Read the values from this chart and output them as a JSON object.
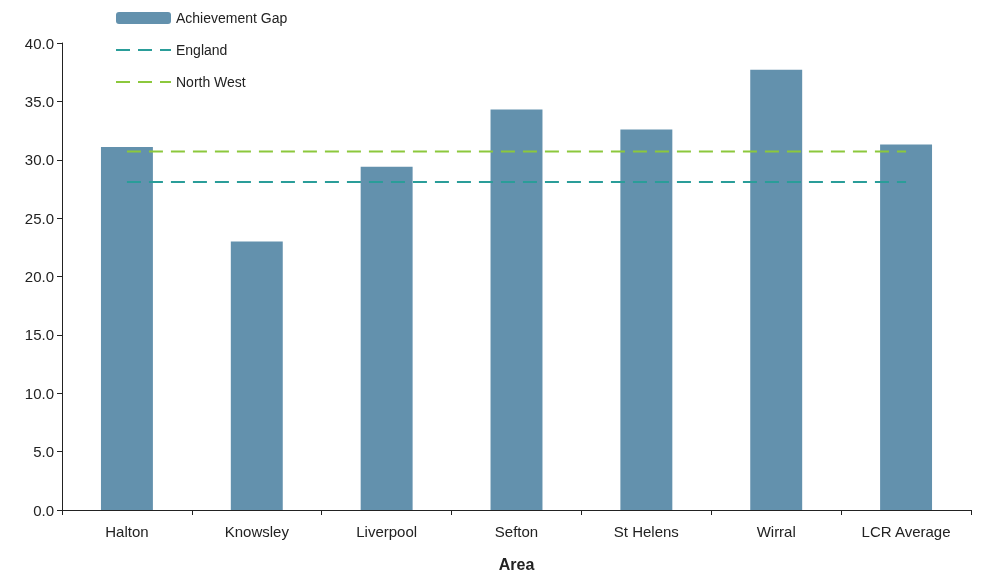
{
  "chart_data": {
    "type": "bar",
    "xlabel": "Area",
    "categories": [
      "Halton",
      "Knowsley",
      "Liverpool",
      "Sefton",
      "St Helens",
      "Wirral",
      "LCR Average"
    ],
    "series": [
      {
        "name": "Achievement Gap",
        "color": "#6391ad",
        "values": [
          31.1,
          23.0,
          29.4,
          34.3,
          32.6,
          37.7,
          31.3
        ]
      },
      {
        "name": "England",
        "type": "line",
        "color": "#2a9d99",
        "line_style": "dashed",
        "marker": "none",
        "values": [
          28.1,
          28.1,
          28.1,
          28.1,
          28.1,
          28.1,
          28.1
        ]
      },
      {
        "name": "North West",
        "type": "line",
        "color": "#8cc83c",
        "line_style": "dashed",
        "marker": "none",
        "values": [
          30.7,
          30.7,
          30.7,
          30.7,
          30.7,
          30.7,
          30.7
        ]
      }
    ],
    "ylim": [
      0,
      40
    ],
    "yticks": [
      {
        "value": 0,
        "label": "0.0"
      },
      {
        "value": 5,
        "label": "5.0"
      },
      {
        "value": 10,
        "label": "10.0"
      },
      {
        "value": 15,
        "label": "15.0"
      },
      {
        "value": 20,
        "label": "20.0"
      },
      {
        "value": 25,
        "label": "25.0"
      },
      {
        "value": 30,
        "label": "30.0"
      },
      {
        "value": 35,
        "label": "35.0"
      },
      {
        "value": 40,
        "label": "40.0"
      }
    ],
    "grid": false,
    "legend": "top left"
  }
}
